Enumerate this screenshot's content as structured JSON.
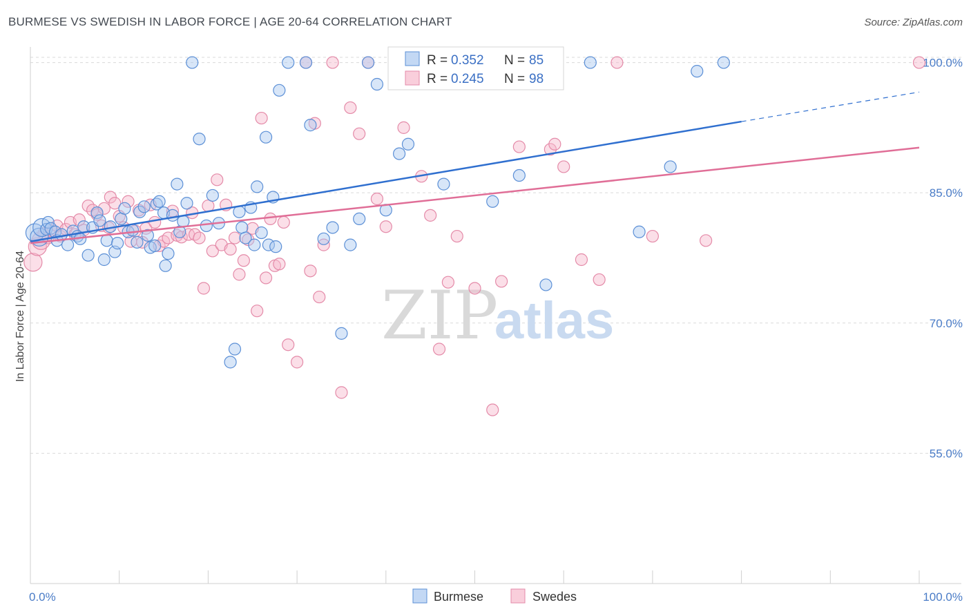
{
  "title": "BURMESE VS SWEDISH IN LABOR FORCE | AGE 20-64 CORRELATION CHART",
  "source": "Source: ZipAtlas.com",
  "watermark": {
    "zip": "ZIP",
    "atlas": "atlas"
  },
  "colors": {
    "burmese_fill": "#a9c8f0",
    "burmese_stroke": "#5b8fd6",
    "burmese_line": "#2f6fcf",
    "swedes_fill": "#f6b9cc",
    "swedes_stroke": "#e48aa8",
    "swedes_line": "#e06e97",
    "grid": "#d9d9d9",
    "tick_label": "#4a7cc7"
  },
  "legend": {
    "rows": [
      {
        "r_label": "R =",
        "r_value": "0.352",
        "n_label": "N =",
        "n_value": "85"
      },
      {
        "r_label": "R =",
        "r_value": "0.245",
        "n_label": "N =",
        "n_value": "98"
      }
    ],
    "bottom": [
      "Burmese",
      "Swedes"
    ]
  },
  "chart_data": {
    "type": "scatter",
    "title": "BURMESE VS SWEDISH IN LABOR FORCE | AGE 20-64 CORRELATION CHART",
    "xlabel": "",
    "ylabel": "In Labor Force | Age 20-64",
    "xlim": [
      0,
      100
    ],
    "ylim": [
      40,
      101
    ],
    "x_tick_labels": [
      "0.0%",
      "100.0%"
    ],
    "y_ticks": [
      55,
      70,
      85,
      100
    ],
    "y_tick_labels": [
      "55.0%",
      "70.0%",
      "85.0%",
      "100.0%"
    ],
    "grid": true,
    "legend_position": "top-center",
    "series": [
      {
        "name": "Burmese",
        "R": 0.352,
        "N": 85,
        "trend": {
          "x0": 0,
          "y0": 79.4,
          "x1": 80,
          "y1": 93.2,
          "dash_to_x": 100,
          "dash_to_y": 96.6
        },
        "points": [
          [
            0.5,
            80.4
          ],
          [
            1.0,
            79.9
          ],
          [
            1.3,
            81.0
          ],
          [
            1.8,
            80.8
          ],
          [
            2.0,
            81.6
          ],
          [
            2.3,
            80.9
          ],
          [
            2.8,
            80.5
          ],
          [
            3.0,
            79.5
          ],
          [
            3.5,
            80.2
          ],
          [
            4.2,
            79.0
          ],
          [
            4.8,
            80.6
          ],
          [
            5.3,
            80.0
          ],
          [
            5.6,
            79.7
          ],
          [
            6.0,
            81.1
          ],
          [
            6.5,
            77.8
          ],
          [
            7.0,
            81.0
          ],
          [
            7.5,
            82.7
          ],
          [
            7.8,
            81.8
          ],
          [
            8.3,
            77.3
          ],
          [
            8.6,
            79.5
          ],
          [
            9.0,
            81.1
          ],
          [
            9.5,
            78.2
          ],
          [
            9.8,
            79.2
          ],
          [
            10.2,
            82.0
          ],
          [
            10.6,
            83.2
          ],
          [
            11.0,
            80.5
          ],
          [
            11.5,
            80.7
          ],
          [
            12.0,
            79.3
          ],
          [
            12.3,
            82.8
          ],
          [
            12.8,
            83.4
          ],
          [
            13.2,
            80.1
          ],
          [
            13.5,
            78.7
          ],
          [
            14.0,
            78.9
          ],
          [
            14.2,
            83.7
          ],
          [
            14.5,
            84.0
          ],
          [
            15.0,
            82.7
          ],
          [
            15.2,
            76.6
          ],
          [
            15.5,
            78.0
          ],
          [
            16.0,
            82.4
          ],
          [
            16.5,
            86.0
          ],
          [
            16.8,
            80.5
          ],
          [
            17.2,
            81.7
          ],
          [
            17.6,
            83.8
          ],
          [
            18.2,
            100.0
          ],
          [
            19.0,
            91.2
          ],
          [
            19.8,
            81.2
          ],
          [
            20.5,
            84.7
          ],
          [
            21.2,
            81.5
          ],
          [
            22.5,
            65.5
          ],
          [
            23.0,
            67.0
          ],
          [
            23.5,
            82.8
          ],
          [
            23.8,
            81.0
          ],
          [
            24.2,
            79.8
          ],
          [
            24.8,
            83.3
          ],
          [
            25.2,
            79.0
          ],
          [
            25.5,
            85.7
          ],
          [
            26.0,
            80.4
          ],
          [
            26.5,
            91.4
          ],
          [
            26.8,
            79.0
          ],
          [
            27.3,
            84.5
          ],
          [
            27.6,
            78.8
          ],
          [
            28.0,
            96.8
          ],
          [
            29.0,
            100.0
          ],
          [
            31.0,
            100.0
          ],
          [
            31.5,
            92.8
          ],
          [
            33.0,
            79.7
          ],
          [
            34.0,
            81.0
          ],
          [
            35.0,
            68.8
          ],
          [
            36.0,
            79.0
          ],
          [
            37.0,
            82.0
          ],
          [
            38.0,
            100.0
          ],
          [
            39.0,
            97.5
          ],
          [
            40.0,
            83.0
          ],
          [
            41.5,
            89.5
          ],
          [
            42.5,
            90.6
          ],
          [
            46.0,
            98.0
          ],
          [
            46.5,
            86.0
          ],
          [
            52.0,
            84.0
          ],
          [
            55.0,
            87.0
          ],
          [
            58.0,
            74.4
          ],
          [
            63.0,
            100.0
          ],
          [
            68.5,
            80.5
          ],
          [
            72.0,
            88.0
          ],
          [
            75.0,
            99.0
          ],
          [
            78.0,
            100.0
          ]
        ]
      },
      {
        "name": "Swedes",
        "R": 0.245,
        "N": 98,
        "trend": {
          "x0": 0,
          "y0": 79.2,
          "x1": 100,
          "y1": 90.2
        },
        "points": [
          [
            0.3,
            77.0
          ],
          [
            0.8,
            78.8
          ],
          [
            1.2,
            79.5
          ],
          [
            1.5,
            80.3
          ],
          [
            2.0,
            79.8
          ],
          [
            2.5,
            80.6
          ],
          [
            3.0,
            81.2
          ],
          [
            3.4,
            80.0
          ],
          [
            4.0,
            80.8
          ],
          [
            4.5,
            81.6
          ],
          [
            5.0,
            80.2
          ],
          [
            5.5,
            81.9
          ],
          [
            6.0,
            80.7
          ],
          [
            6.5,
            83.5
          ],
          [
            7.0,
            83.0
          ],
          [
            7.5,
            82.5
          ],
          [
            8.0,
            81.2
          ],
          [
            8.3,
            83.2
          ],
          [
            8.8,
            81.0
          ],
          [
            9.0,
            84.5
          ],
          [
            9.5,
            83.8
          ],
          [
            10.0,
            82.3
          ],
          [
            10.5,
            81.0
          ],
          [
            11.0,
            84.0
          ],
          [
            11.3,
            79.4
          ],
          [
            11.8,
            80.6
          ],
          [
            12.2,
            83.0
          ],
          [
            12.6,
            79.3
          ],
          [
            13.0,
            80.9
          ],
          [
            13.5,
            83.6
          ],
          [
            14.0,
            81.6
          ],
          [
            14.5,
            78.9
          ],
          [
            15.0,
            79.4
          ],
          [
            15.5,
            79.8
          ],
          [
            16.0,
            82.9
          ],
          [
            16.5,
            80.1
          ],
          [
            17.0,
            79.9
          ],
          [
            17.8,
            80.2
          ],
          [
            18.2,
            82.7
          ],
          [
            18.5,
            80.2
          ],
          [
            19.0,
            79.8
          ],
          [
            19.5,
            74.0
          ],
          [
            20.0,
            83.5
          ],
          [
            20.5,
            78.3
          ],
          [
            21.0,
            86.5
          ],
          [
            21.5,
            79.0
          ],
          [
            22.0,
            83.6
          ],
          [
            22.5,
            78.5
          ],
          [
            23.0,
            79.8
          ],
          [
            23.5,
            75.6
          ],
          [
            24.0,
            77.2
          ],
          [
            24.5,
            79.6
          ],
          [
            25.0,
            80.9
          ],
          [
            25.5,
            71.4
          ],
          [
            26.0,
            93.6
          ],
          [
            26.5,
            75.2
          ],
          [
            27.0,
            82.0
          ],
          [
            27.5,
            76.6
          ],
          [
            28.0,
            76.8
          ],
          [
            28.5,
            81.6
          ],
          [
            29.0,
            67.5
          ],
          [
            30.0,
            65.5
          ],
          [
            31.0,
            100.0
          ],
          [
            31.5,
            76.0
          ],
          [
            32.0,
            93.0
          ],
          [
            32.5,
            73.0
          ],
          [
            33.0,
            79.0
          ],
          [
            34.0,
            100.0
          ],
          [
            35.0,
            62.0
          ],
          [
            36.0,
            94.8
          ],
          [
            37.0,
            91.8
          ],
          [
            38.0,
            100.0
          ],
          [
            39.0,
            84.3
          ],
          [
            40.0,
            81.1
          ],
          [
            41.0,
            100.0
          ],
          [
            42.0,
            92.5
          ],
          [
            43.0,
            100.0
          ],
          [
            44.0,
            86.9
          ],
          [
            45.0,
            82.4
          ],
          [
            46.0,
            67.0
          ],
          [
            47.0,
            74.7
          ],
          [
            48.0,
            80.0
          ],
          [
            49.0,
            100.0
          ],
          [
            50.0,
            74.0
          ],
          [
            51.0,
            100.0
          ],
          [
            52.0,
            60.0
          ],
          [
            53.0,
            74.8
          ],
          [
            55.0,
            90.3
          ],
          [
            57.0,
            100.0
          ],
          [
            58.5,
            90.0
          ],
          [
            59.0,
            90.6
          ],
          [
            60.0,
            88.0
          ],
          [
            62.0,
            77.3
          ],
          [
            64.0,
            75.0
          ],
          [
            66.0,
            100.0
          ],
          [
            70.0,
            80.0
          ],
          [
            76.0,
            79.5
          ],
          [
            100.0,
            100.0
          ]
        ]
      }
    ]
  }
}
